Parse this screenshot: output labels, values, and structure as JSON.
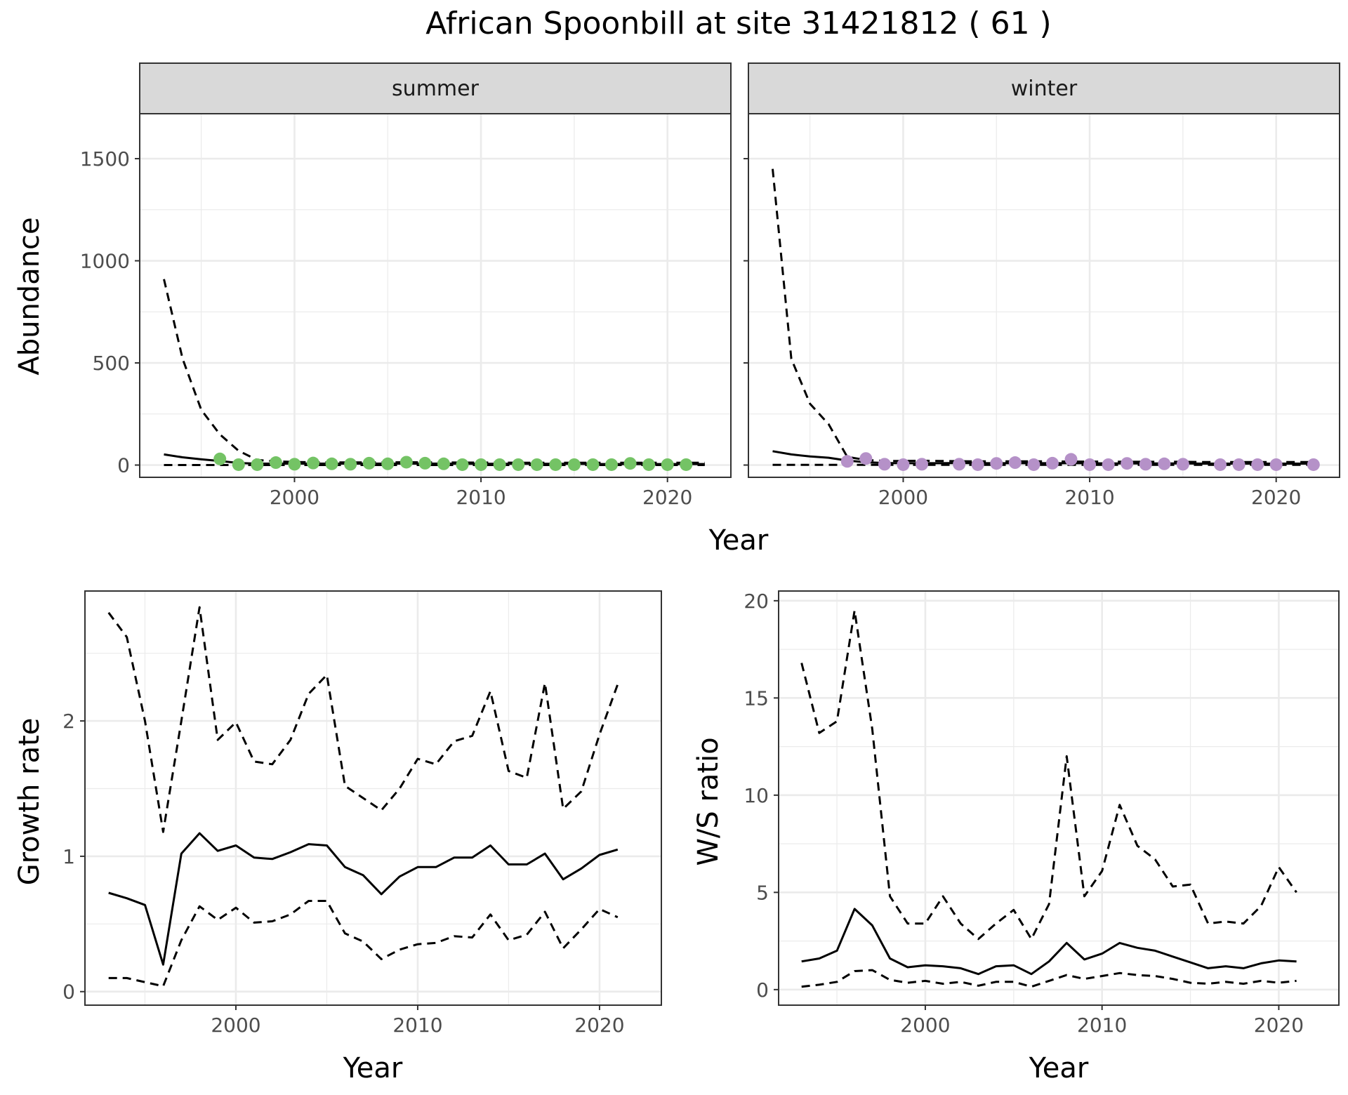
{
  "title": "African Spoonbill at site 31421812 ( 61 )",
  "colors": {
    "summer_points": "#74c365",
    "winter_points": "#b591c8",
    "line": "#000000",
    "grid": "#ebebeb",
    "strip_bg": "#d9d9d9"
  },
  "chart_data": [
    {
      "type": "line",
      "panel": "abundance",
      "facets": [
        "summer",
        "winter"
      ],
      "xlabel": "Year",
      "ylabel": "Abundance",
      "ylim": [
        -60,
        1720
      ],
      "xlim": [
        1991.7,
        2023.4
      ],
      "yticks": [
        0,
        500,
        1000,
        1500
      ],
      "xticks": [
        2000,
        2010,
        2020
      ],
      "grid": true,
      "series": [
        {
          "facet": "summer",
          "style": "solid",
          "x": [
            1993,
            1994,
            1995,
            1996,
            1997,
            1998,
            1999,
            2000,
            2001,
            2002,
            2003,
            2004,
            2005,
            2006,
            2007,
            2008,
            2009,
            2010,
            2011,
            2012,
            2013,
            2014,
            2015,
            2016,
            2017,
            2018,
            2019,
            2020,
            2021,
            2022
          ],
          "y": [
            52,
            38,
            28,
            20,
            10,
            7,
            7,
            7,
            7,
            7,
            7,
            7,
            7,
            7,
            7,
            7,
            6,
            6,
            6,
            6,
            6,
            6,
            6,
            5,
            5,
            5,
            5,
            5,
            5,
            5
          ]
        },
        {
          "facet": "summer",
          "style": "dashed",
          "x": [
            1993,
            1994,
            1995,
            1996,
            1997,
            1998,
            1999,
            2000,
            2001,
            2002,
            2003,
            2004,
            2005,
            2006,
            2007,
            2008,
            2009,
            2010,
            2011,
            2012,
            2013,
            2014,
            2015,
            2016,
            2017,
            2018,
            2019,
            2020,
            2021,
            2022
          ],
          "y": [
            910,
            520,
            270,
            150,
            70,
            25,
            18,
            15,
            14,
            13,
            13,
            13,
            13,
            14,
            13,
            13,
            12,
            12,
            12,
            11,
            11,
            11,
            11,
            11,
            11,
            11,
            11,
            11,
            11,
            11
          ]
        },
        {
          "facet": "summer",
          "style": "dashed",
          "x": [
            1993,
            2022
          ],
          "y": [
            0,
            0
          ]
        },
        {
          "facet": "summer",
          "style": "points",
          "x": [
            1996,
            1997,
            1998,
            1999,
            2000,
            2001,
            2002,
            2003,
            2004,
            2005,
            2006,
            2007,
            2008,
            2009,
            2010,
            2011,
            2012,
            2013,
            2014,
            2015,
            2016,
            2017,
            2018,
            2019,
            2020,
            2021
          ],
          "y": [
            30,
            2,
            2,
            12,
            4,
            10,
            6,
            4,
            9,
            6,
            14,
            9,
            6,
            2,
            2,
            2,
            2,
            2,
            2,
            2,
            2,
            2,
            8,
            2,
            2,
            2
          ]
        },
        {
          "facet": "winter",
          "style": "solid",
          "x": [
            1993,
            1994,
            1995,
            1996,
            1997,
            1998,
            1999,
            2000,
            2001,
            2002,
            2003,
            2004,
            2005,
            2006,
            2007,
            2008,
            2009,
            2010,
            2011,
            2012,
            2013,
            2014,
            2015,
            2016,
            2017,
            2018,
            2019,
            2020,
            2021,
            2022
          ],
          "y": [
            68,
            52,
            42,
            36,
            22,
            14,
            10,
            9,
            9,
            9,
            10,
            9,
            9,
            9,
            9,
            9,
            9,
            9,
            8,
            8,
            8,
            8,
            8,
            7,
            7,
            7,
            7,
            7,
            7,
            7
          ]
        },
        {
          "facet": "winter",
          "style": "dashed",
          "x": [
            1993,
            1994,
            1995,
            1996,
            1997,
            1998,
            1999,
            2000,
            2001,
            2002,
            2003,
            2004,
            2005,
            2006,
            2007,
            2008,
            2009,
            2010,
            2011,
            2012,
            2013,
            2014,
            2015,
            2016,
            2017,
            2018,
            2019,
            2020,
            2021,
            2022
          ],
          "y": [
            1450,
            520,
            300,
            200,
            40,
            25,
            20,
            20,
            21,
            20,
            19,
            18,
            18,
            18,
            18,
            18,
            17,
            17,
            17,
            16,
            16,
            16,
            16,
            15,
            15,
            15,
            15,
            15,
            15,
            15
          ]
        },
        {
          "facet": "winter",
          "style": "dashed",
          "x": [
            1993,
            2022
          ],
          "y": [
            1,
            1
          ]
        },
        {
          "facet": "winter",
          "style": "points",
          "x": [
            1997,
            1998,
            1999,
            2000,
            2001,
            2003,
            2004,
            2005,
            2006,
            2007,
            2008,
            2009,
            2010,
            2011,
            2012,
            2013,
            2014,
            2015,
            2017,
            2018,
            2019,
            2020,
            2022
          ],
          "y": [
            18,
            32,
            4,
            2,
            4,
            4,
            2,
            8,
            12,
            2,
            9,
            28,
            2,
            2,
            8,
            4,
            6,
            4,
            2,
            2,
            2,
            2,
            2
          ]
        }
      ]
    },
    {
      "type": "line",
      "panel": "growth",
      "xlabel": "Year",
      "ylabel": "Growth rate",
      "ylim": [
        -0.1,
        2.96
      ],
      "xlim": [
        1991.7,
        2023.4
      ],
      "yticks": [
        0,
        1,
        2
      ],
      "xticks": [
        2000,
        2010,
        2020
      ],
      "grid": true,
      "series": [
        {
          "style": "solid",
          "x": [
            1993,
            1994,
            1995,
            1996,
            1997,
            1998,
            1999,
            2000,
            2001,
            2002,
            2003,
            2004,
            2005,
            2006,
            2007,
            2008,
            2009,
            2010,
            2011,
            2012,
            2013,
            2014,
            2015,
            2016,
            2017,
            2018,
            2019,
            2020,
            2021
          ],
          "y": [
            0.73,
            0.69,
            0.64,
            0.2,
            1.02,
            1.17,
            1.04,
            1.08,
            0.99,
            0.98,
            1.03,
            1.09,
            1.08,
            0.92,
            0.86,
            0.72,
            0.85,
            0.92,
            0.92,
            0.99,
            0.99,
            1.08,
            0.94,
            0.94,
            1.02,
            0.83,
            0.91,
            1.01,
            1.05
          ]
        },
        {
          "style": "dashed",
          "x": [
            1993,
            1994,
            1995,
            1996,
            1997,
            1998,
            1999,
            2000,
            2001,
            2002,
            2003,
            2004,
            2005,
            2006,
            2007,
            2008,
            2009,
            2010,
            2011,
            2012,
            2013,
            2014,
            2015,
            2016,
            2017,
            2018,
            2019,
            2020,
            2021
          ],
          "y": [
            2.8,
            2.62,
            2.0,
            1.18,
            2.0,
            2.84,
            1.86,
            1.99,
            1.7,
            1.68,
            1.86,
            2.2,
            2.34,
            1.52,
            1.43,
            1.34,
            1.5,
            1.72,
            1.68,
            1.85,
            1.89,
            2.22,
            1.63,
            1.58,
            2.28,
            1.35,
            1.48,
            1.9,
            2.27
          ]
        },
        {
          "style": "dashed",
          "x": [
            1993,
            1994,
            1995,
            1996,
            1997,
            1998,
            1999,
            2000,
            2001,
            2002,
            2003,
            2004,
            2005,
            2006,
            2007,
            2008,
            2009,
            2010,
            2011,
            2012,
            2013,
            2014,
            2015,
            2016,
            2017,
            2018,
            2019,
            2020,
            2021
          ],
          "y": [
            0.1,
            0.1,
            0.07,
            0.04,
            0.38,
            0.63,
            0.53,
            0.62,
            0.51,
            0.52,
            0.57,
            0.67,
            0.67,
            0.43,
            0.37,
            0.24,
            0.31,
            0.35,
            0.36,
            0.41,
            0.4,
            0.57,
            0.38,
            0.42,
            0.59,
            0.32,
            0.46,
            0.61,
            0.55
          ]
        }
      ]
    },
    {
      "type": "line",
      "panel": "ratio",
      "xlabel": "Year",
      "ylabel": "W/S ratio",
      "ylim": [
        -0.8,
        20.5
      ],
      "xlim": [
        1991.7,
        2023.4
      ],
      "yticks": [
        0,
        5,
        10,
        15,
        20
      ],
      "xticks": [
        2000,
        2010,
        2020
      ],
      "grid": true,
      "series": [
        {
          "style": "solid",
          "x": [
            1993,
            1994,
            1995,
            1996,
            1997,
            1998,
            1999,
            2000,
            2001,
            2002,
            2003,
            2004,
            2005,
            2006,
            2007,
            2008,
            2009,
            2010,
            2011,
            2012,
            2013,
            2014,
            2015,
            2016,
            2017,
            2018,
            2019,
            2020,
            2021
          ],
          "y": [
            1.45,
            1.6,
            2.0,
            4.15,
            3.3,
            1.6,
            1.15,
            1.25,
            1.2,
            1.1,
            0.8,
            1.2,
            1.25,
            0.8,
            1.45,
            2.4,
            1.55,
            1.85,
            2.4,
            2.15,
            2.0,
            1.7,
            1.4,
            1.1,
            1.2,
            1.1,
            1.35,
            1.5,
            1.45
          ]
        },
        {
          "style": "dashed",
          "x": [
            1993,
            1994,
            1995,
            1996,
            1997,
            1998,
            1999,
            2000,
            2001,
            2002,
            2003,
            2004,
            2005,
            2006,
            2007,
            2008,
            2009,
            2010,
            2011,
            2012,
            2013,
            2014,
            2015,
            2016,
            2017,
            2018,
            2019,
            2020,
            2021
          ],
          "y": [
            16.8,
            13.2,
            13.8,
            19.5,
            13.4,
            4.8,
            3.4,
            3.4,
            4.8,
            3.4,
            2.6,
            3.4,
            4.1,
            2.6,
            4.4,
            12.0,
            4.8,
            6.1,
            9.5,
            7.4,
            6.7,
            5.3,
            5.4,
            3.4,
            3.5,
            3.4,
            4.3,
            6.3,
            5.0
          ]
        },
        {
          "style": "dashed",
          "x": [
            1993,
            1994,
            1995,
            1996,
            1997,
            1998,
            1999,
            2000,
            2001,
            2002,
            2003,
            2004,
            2005,
            2006,
            2007,
            2008,
            2009,
            2010,
            2011,
            2012,
            2013,
            2014,
            2015,
            2016,
            2017,
            2018,
            2019,
            2020,
            2021
          ],
          "y": [
            0.15,
            0.25,
            0.4,
            0.95,
            1.0,
            0.5,
            0.35,
            0.45,
            0.3,
            0.4,
            0.2,
            0.4,
            0.4,
            0.15,
            0.45,
            0.75,
            0.55,
            0.7,
            0.85,
            0.75,
            0.7,
            0.55,
            0.35,
            0.3,
            0.4,
            0.3,
            0.45,
            0.35,
            0.45
          ]
        }
      ]
    }
  ]
}
